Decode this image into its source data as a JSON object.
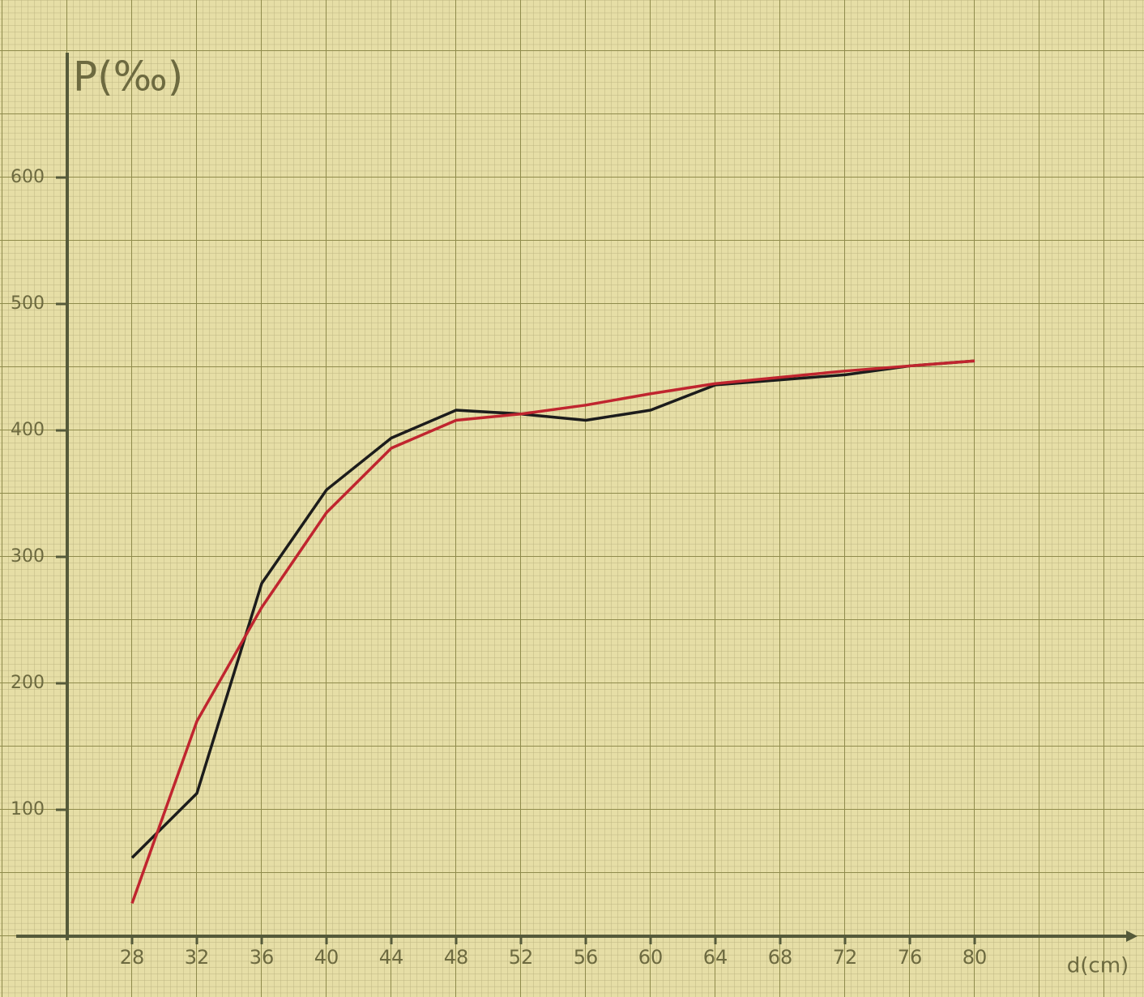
{
  "chart_data": {
    "type": "line",
    "y_label": "P(‰)",
    "x_label": "d(cm)",
    "x": [
      28,
      32,
      36,
      40,
      44,
      48,
      52,
      56,
      60,
      64,
      68,
      72,
      76,
      80
    ],
    "series": [
      {
        "color": "#1c1c1c",
        "values": [
          62,
          113,
          279,
          353,
          394,
          416,
          413,
          408,
          416,
          436,
          440,
          444,
          451,
          455
        ]
      },
      {
        "color": "#c0252f",
        "values": [
          26,
          170,
          260,
          335,
          386,
          408,
          413,
          420,
          429,
          437,
          442,
          447,
          451,
          455
        ]
      }
    ],
    "xlim": [
      24,
      90
    ],
    "ylim": [
      0,
      700
    ],
    "xticks": [
      28,
      32,
      36,
      40,
      44,
      48,
      52,
      56,
      60,
      64,
      68,
      72,
      76,
      80
    ],
    "yticks": [
      100,
      200,
      300,
      400,
      500,
      600
    ],
    "grid": true
  }
}
